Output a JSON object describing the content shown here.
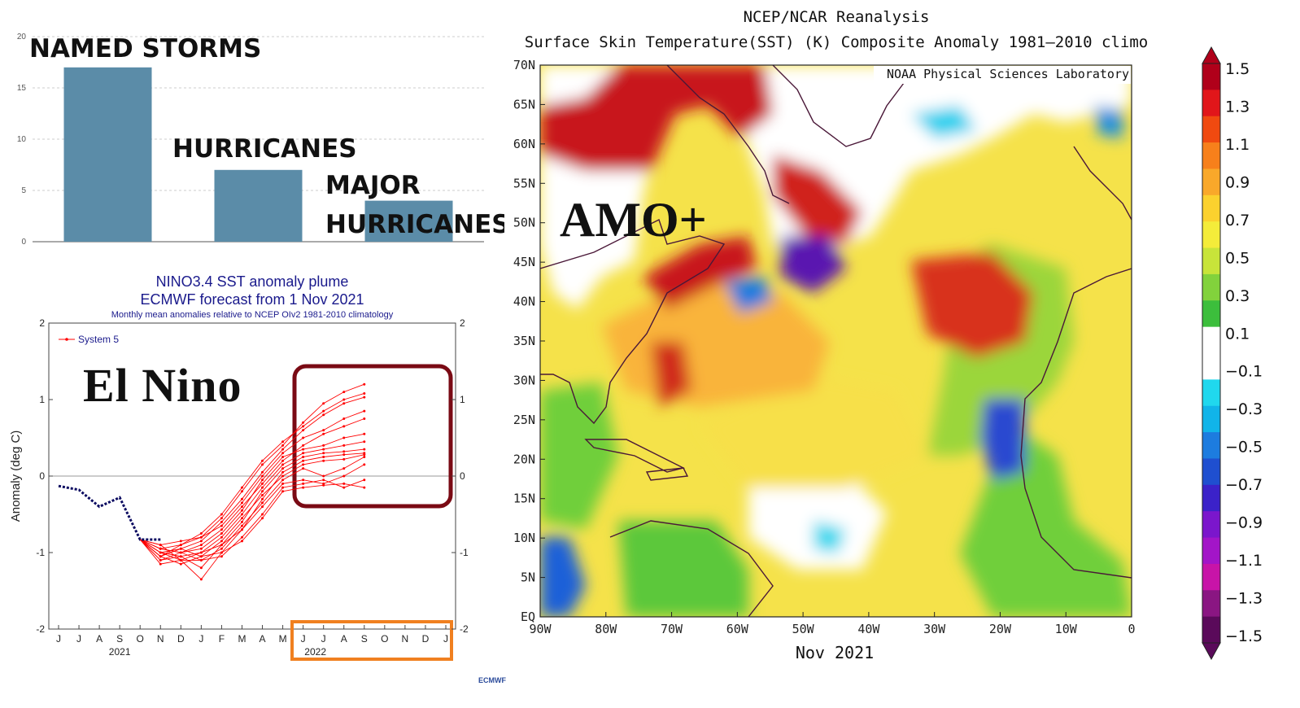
{
  "chart_data": [
    {
      "type": "bar",
      "categories": [
        "NAMED STORMS",
        "HURRICANES",
        "MAJOR HURRICANES"
      ],
      "category_label_lines": [
        [
          "NAMED STORMS"
        ],
        [
          "HURRICANES"
        ],
        [
          "MAJOR",
          "HURRICANES"
        ]
      ],
      "values": [
        17,
        7,
        4
      ],
      "yticks": [
        0,
        5,
        10,
        15,
        20
      ],
      "ylim": [
        0,
        20
      ],
      "grid": true,
      "bar_color": "#5b8ca8"
    },
    {
      "type": "line",
      "title": "NINO3.4 SST anomaly plume",
      "subtitle": "ECMWF forecast from 1 Nov 2021",
      "note": "Monthly mean anomalies relative to NCEP OIv2 1981-2010 climatology",
      "ylabel": "Anomaly (deg C)",
      "ylim": [
        -2,
        2
      ],
      "yticks": [
        "-2",
        "-1",
        "0",
        "1",
        "2"
      ],
      "month_ticks": [
        "J",
        "J",
        "A",
        "S",
        "O",
        "N",
        "D",
        "J",
        "F",
        "M",
        "A",
        "M",
        "J",
        "J",
        "A",
        "S",
        "O",
        "N",
        "D",
        "J"
      ],
      "year_labels": [
        {
          "label": "2021",
          "month_index": 3
        },
        {
          "label": "2022",
          "month_index": 12.6
        }
      ],
      "legend": "System 5",
      "annotation": "El Nino",
      "footer": "ECMWF",
      "observed": {
        "x": [
          0,
          1,
          2,
          3,
          4,
          5
        ],
        "y": [
          -0.13,
          -0.18,
          -0.4,
          -0.28,
          -0.83,
          -0.83
        ]
      },
      "forecast_colors": {
        "observed": "#0a0a60",
        "members": "#ff0000",
        "highlight_box": "#7a0a14",
        "date_box": "#f08020"
      },
      "members": [
        [
          -0.9,
          -0.85,
          -0.8,
          -0.55,
          -0.2,
          0.15,
          0.4,
          0.7,
          0.95,
          1.1,
          1.2
        ],
        [
          -0.95,
          -0.9,
          -0.75,
          -0.5,
          -0.15,
          0.2,
          0.45,
          0.65,
          0.85,
          1.0,
          1.08
        ],
        [
          -1.0,
          -0.95,
          -0.85,
          -0.6,
          -0.3,
          0.05,
          0.35,
          0.6,
          0.8,
          0.95,
          1.03
        ],
        [
          -1.05,
          -0.9,
          -0.8,
          -0.65,
          -0.35,
          0.0,
          0.3,
          0.5,
          0.6,
          0.75,
          0.85
        ],
        [
          -1.1,
          -1.0,
          -0.9,
          -0.7,
          -0.4,
          -0.1,
          0.2,
          0.4,
          0.55,
          0.65,
          0.75
        ],
        [
          -0.95,
          -1.0,
          -0.95,
          -0.75,
          -0.45,
          -0.05,
          0.25,
          0.35,
          0.4,
          0.5,
          0.55
        ],
        [
          -1.15,
          -1.1,
          -1.0,
          -0.8,
          -0.5,
          -0.15,
          0.15,
          0.3,
          0.35,
          0.4,
          0.45
        ],
        [
          -1.0,
          -1.05,
          -1.2,
          -0.9,
          -0.6,
          -0.2,
          0.1,
          0.25,
          0.3,
          0.32,
          0.35
        ],
        [
          -0.9,
          -1.1,
          -1.35,
          -1.0,
          -0.7,
          -0.3,
          0.05,
          0.2,
          0.25,
          0.28,
          0.3
        ],
        [
          -1.05,
          -0.95,
          -1.05,
          -0.85,
          -0.55,
          -0.25,
          0.0,
          0.15,
          0.2,
          0.22,
          0.28
        ],
        [
          -1.0,
          -1.1,
          -1.1,
          -0.95,
          -0.65,
          -0.35,
          -0.05,
          0.1,
          0.0,
          0.1,
          0.25
        ],
        [
          -1.1,
          -1.05,
          -1.0,
          -0.9,
          -0.7,
          -0.4,
          -0.1,
          -0.05,
          -0.1,
          0.0,
          0.15
        ],
        [
          -0.95,
          -1.0,
          -1.1,
          -1.05,
          -0.8,
          -0.5,
          -0.15,
          -0.1,
          -0.05,
          -0.15,
          -0.05
        ],
        [
          -1.05,
          -1.15,
          -1.05,
          -1.0,
          -0.85,
          -0.55,
          -0.2,
          -0.15,
          -0.12,
          -0.1,
          -0.15
        ]
      ]
    },
    {
      "type": "heatmap",
      "title": "NCEP/NCAR Reanalysis",
      "subtitle": "Surface Skin Temperature(SST) (K) Composite Anomaly 1981–2010 climo",
      "credit": "NOAA Physical Sciences Laboratory",
      "period": "Nov 2021",
      "annotation": "AMO+",
      "lat_labels": [
        "70N",
        "65N",
        "60N",
        "55N",
        "50N",
        "45N",
        "40N",
        "35N",
        "30N",
        "25N",
        "20N",
        "15N",
        "10N",
        "5N",
        "EQ"
      ],
      "lon_labels": [
        "90W",
        "80W",
        "70W",
        "60W",
        "50W",
        "40W",
        "30W",
        "20W",
        "10W",
        "0"
      ],
      "colorbar": {
        "labels": [
          "1.5",
          "1.3",
          "1.1",
          "0.9",
          "0.7",
          "0.5",
          "0.3",
          "0.1",
          "−0.1",
          "−0.3",
          "−0.5",
          "−0.7",
          "−0.9",
          "−1.1",
          "−1.3",
          "−1.5"
        ],
        "colors": [
          "#b0001a",
          "#e1161a",
          "#f04a10",
          "#f7801b",
          "#f9a82a",
          "#fbd12e",
          "#f4ec3a",
          "#c8e43a",
          "#82d23c",
          "#3cbe3c",
          "#ffffff",
          "#ffffff",
          "#20d8ee",
          "#11b4e9",
          "#1d7cdf",
          "#1f4fd0",
          "#3b22c9",
          "#7b16cc",
          "#a315c8",
          "#c814a8",
          "#8a1682",
          "#5a0a5a"
        ]
      },
      "regions": [
        {
          "name": "ocean-base",
          "level": 0.4
        },
        {
          "name": "north-labrador-warm",
          "level": 1.4
        },
        {
          "name": "west-greenland-warm",
          "level": 1.2
        },
        {
          "name": "gulf-stream-warm",
          "level": 1.4
        },
        {
          "name": "central-north-atlantic-warm",
          "level": 1.3
        },
        {
          "name": "sargasso-warm",
          "level": 1.2
        },
        {
          "name": "newfoundland-cold",
          "level": -1.0
        },
        {
          "name": "gulf-stmaine-cold",
          "level": -0.4
        },
        {
          "name": "iceland-cold",
          "level": -0.3
        },
        {
          "name": "canary-upwelling-cold",
          "level": -0.7
        },
        {
          "name": "east-pacific-cold",
          "level": -0.5
        },
        {
          "name": "equatorial-neutral",
          "level": 0.0
        }
      ]
    }
  ]
}
